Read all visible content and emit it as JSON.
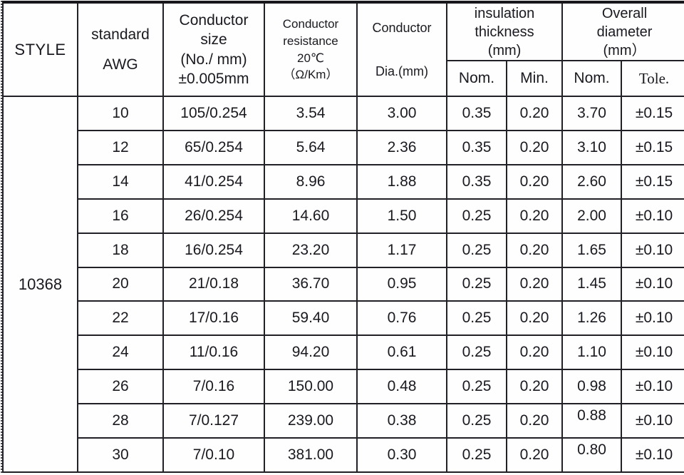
{
  "document": {
    "type": "wire-specification-table",
    "style_value": "10368",
    "text_color": "#191920",
    "line_color": "#202026",
    "background_color": "#fefefe"
  },
  "header": {
    "style": "STYLE",
    "standard_awg": "standard\nAWG",
    "conductor_size": "Conductor\nsize\n(No./ mm)\n±0.005mm",
    "conductor_resistance": "Conductor\nresistance\n20℃\n（Ω/Km）",
    "conductor_dia_line1": "Conductor",
    "conductor_dia_line2": "Dia.(mm)",
    "insulation_thickness": "insulation\nthickness\n(mm)",
    "overall_diameter": "Overall\ndiameter\n(mm）",
    "sub": {
      "ins_nom": "Nom.",
      "ins_min": "Min.",
      "ov_nom": "Nom.",
      "ov_tole": "Tole."
    }
  },
  "rows": [
    {
      "awg": "10",
      "size": "105/0.254",
      "resistance": "3.54",
      "dia": "3.00",
      "ins_nom": "0.35",
      "ins_min": "0.20",
      "ov_nom": "3.70",
      "ov_tole": "±0.15"
    },
    {
      "awg": "12",
      "size": "65/0.254",
      "resistance": "5.64",
      "dia": "2.36",
      "ins_nom": "0.35",
      "ins_min": "0.20",
      "ov_nom": "3.10",
      "ov_tole": "±0.15"
    },
    {
      "awg": "14",
      "size": "41/0.254",
      "resistance": "8.96",
      "dia": "1.88",
      "ins_nom": "0.35",
      "ins_min": "0.20",
      "ov_nom": "2.60",
      "ov_tole": "±0.15"
    },
    {
      "awg": "16",
      "size": "26/0.254",
      "resistance": "14.60",
      "dia": "1.50",
      "ins_nom": "0.25",
      "ins_min": "0.20",
      "ov_nom": "2.00",
      "ov_tole": "±0.10"
    },
    {
      "awg": "18",
      "size": "16/0.254",
      "resistance": "23.20",
      "dia": "1.17",
      "ins_nom": "0.25",
      "ins_min": "0.20",
      "ov_nom": "1.65",
      "ov_tole": "±0.10"
    },
    {
      "awg": "20",
      "size": "21/0.18",
      "resistance": "36.70",
      "dia": "0.95",
      "ins_nom": "0.25",
      "ins_min": "0.20",
      "ov_nom": "1.45",
      "ov_tole": "±0.10"
    },
    {
      "awg": "22",
      "size": "17/0.16",
      "resistance": "59.40",
      "dia": "0.76",
      "ins_nom": "0.25",
      "ins_min": "0.20",
      "ov_nom": "1.26",
      "ov_tole": "±0.10"
    },
    {
      "awg": "24",
      "size": "11/0.16",
      "resistance": "94.20",
      "dia": "0.61",
      "ins_nom": "0.25",
      "ins_min": "0.20",
      "ov_nom": "1.10",
      "ov_tole": "±0.10"
    },
    {
      "awg": "26",
      "size": "7/0.16",
      "resistance": "150.00",
      "dia": "0.48",
      "ins_nom": "0.25",
      "ins_min": "0.20",
      "ov_nom": "0.98",
      "ov_tole": "±0.10"
    },
    {
      "awg": "28",
      "size": "7/0.127",
      "resistance": "239.00",
      "dia": "0.38",
      "ins_nom": "0.25",
      "ins_min": "0.20",
      "ov_nom": "0.88",
      "ov_tole": "±0.10"
    },
    {
      "awg": "30",
      "size": "7/0.10",
      "resistance": "381.00",
      "dia": "0.30",
      "ins_nom": "0.25",
      "ins_min": "0.20",
      "ov_nom": "0.80",
      "ov_tole": "±0.10"
    }
  ]
}
